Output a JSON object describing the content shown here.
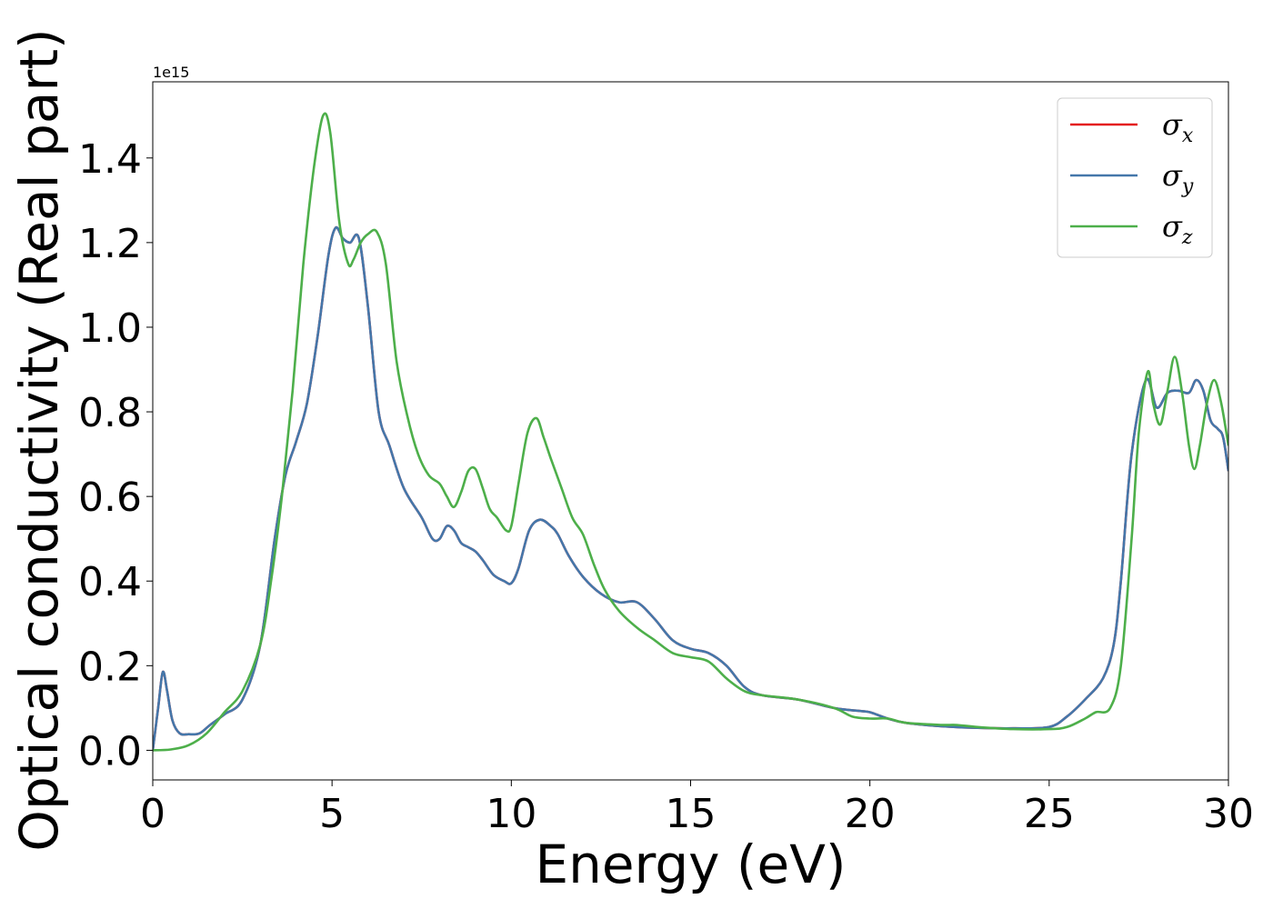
{
  "chart_data": {
    "type": "line",
    "title": "",
    "xlabel": "Energy (eV)",
    "ylabel": "Optical conductivity (Real part)",
    "y_offset_text": "1e15",
    "xlim": [
      0,
      30
    ],
    "ylim": [
      -0.07,
      1.58
    ],
    "xticks": [
      0,
      5,
      10,
      15,
      20,
      25,
      30
    ],
    "xtick_labels": [
      "0",
      "5",
      "10",
      "15",
      "20",
      "25",
      "30"
    ],
    "yticks": [
      0.0,
      0.2,
      0.4,
      0.6,
      0.8,
      1.0,
      1.2,
      1.4
    ],
    "ytick_labels": [
      "0.0",
      "0.2",
      "0.4",
      "0.6",
      "0.8",
      "1.0",
      "1.2",
      "1.4"
    ],
    "grid": false,
    "legend_position": "top-right",
    "series": [
      {
        "name": "σx",
        "symbol": "σ",
        "subscript": "x",
        "color": "#e41a1c",
        "x": [
          0,
          0.15,
          0.28,
          0.4,
          0.55,
          0.75,
          1.0,
          1.3,
          1.6,
          2.0,
          2.5,
          3.0,
          3.4,
          3.7,
          4.0,
          4.3,
          4.6,
          4.9,
          5.1,
          5.3,
          5.5,
          5.75,
          6.0,
          6.3,
          6.6,
          7.0,
          7.5,
          7.8,
          8.0,
          8.2,
          8.4,
          8.6,
          8.8,
          9.0,
          9.2,
          9.5,
          9.8,
          10.0,
          10.2,
          10.5,
          10.8,
          11.1,
          11.3,
          11.6,
          12.0,
          12.5,
          13.0,
          13.5,
          14.0,
          14.5,
          15.0,
          15.5,
          16.0,
          16.5,
          17.0,
          18.0,
          19.0,
          19.7,
          20.0,
          20.5,
          21.0,
          22.0,
          23.0,
          24.0,
          25.0,
          25.5,
          26.0,
          26.5,
          26.8,
          27.0,
          27.3,
          27.7,
          28.0,
          28.3,
          28.6,
          28.9,
          29.1,
          29.3,
          29.5,
          29.7,
          29.85,
          30.0
        ],
        "values": [
          0.0,
          0.1,
          0.185,
          0.14,
          0.07,
          0.04,
          0.038,
          0.04,
          0.06,
          0.085,
          0.12,
          0.25,
          0.5,
          0.65,
          0.73,
          0.82,
          0.98,
          1.17,
          1.235,
          1.21,
          1.2,
          1.21,
          1.05,
          0.8,
          0.72,
          0.62,
          0.55,
          0.5,
          0.5,
          0.53,
          0.52,
          0.49,
          0.48,
          0.47,
          0.45,
          0.415,
          0.4,
          0.395,
          0.43,
          0.52,
          0.545,
          0.53,
          0.51,
          0.46,
          0.41,
          0.37,
          0.35,
          0.35,
          0.31,
          0.26,
          0.24,
          0.23,
          0.2,
          0.15,
          0.13,
          0.12,
          0.1,
          0.093,
          0.09,
          0.075,
          0.065,
          0.057,
          0.053,
          0.052,
          0.055,
          0.08,
          0.12,
          0.17,
          0.25,
          0.4,
          0.7,
          0.875,
          0.81,
          0.845,
          0.85,
          0.845,
          0.875,
          0.85,
          0.78,
          0.76,
          0.74,
          0.66
        ]
      },
      {
        "name": "σy",
        "symbol": "σ",
        "subscript": "y",
        "color": "#4477aa",
        "x": [
          0,
          0.15,
          0.28,
          0.4,
          0.55,
          0.75,
          1.0,
          1.3,
          1.6,
          2.0,
          2.5,
          3.0,
          3.4,
          3.7,
          4.0,
          4.3,
          4.6,
          4.9,
          5.1,
          5.3,
          5.5,
          5.75,
          6.0,
          6.3,
          6.6,
          7.0,
          7.5,
          7.8,
          8.0,
          8.2,
          8.4,
          8.6,
          8.8,
          9.0,
          9.2,
          9.5,
          9.8,
          10.0,
          10.2,
          10.5,
          10.8,
          11.1,
          11.3,
          11.6,
          12.0,
          12.5,
          13.0,
          13.5,
          14.0,
          14.5,
          15.0,
          15.5,
          16.0,
          16.5,
          17.0,
          18.0,
          19.0,
          19.7,
          20.0,
          20.5,
          21.0,
          22.0,
          23.0,
          24.0,
          25.0,
          25.5,
          26.0,
          26.5,
          26.8,
          27.0,
          27.3,
          27.7,
          28.0,
          28.3,
          28.6,
          28.9,
          29.1,
          29.3,
          29.5,
          29.7,
          29.85,
          30.0
        ],
        "values": [
          0.0,
          0.1,
          0.185,
          0.14,
          0.07,
          0.04,
          0.038,
          0.04,
          0.06,
          0.085,
          0.12,
          0.25,
          0.5,
          0.65,
          0.73,
          0.82,
          0.98,
          1.17,
          1.235,
          1.21,
          1.2,
          1.21,
          1.05,
          0.8,
          0.72,
          0.62,
          0.55,
          0.5,
          0.5,
          0.53,
          0.52,
          0.49,
          0.48,
          0.47,
          0.45,
          0.415,
          0.4,
          0.395,
          0.43,
          0.52,
          0.545,
          0.53,
          0.51,
          0.46,
          0.41,
          0.37,
          0.35,
          0.35,
          0.31,
          0.26,
          0.24,
          0.23,
          0.2,
          0.15,
          0.13,
          0.12,
          0.1,
          0.093,
          0.09,
          0.075,
          0.065,
          0.057,
          0.053,
          0.052,
          0.055,
          0.08,
          0.12,
          0.17,
          0.25,
          0.4,
          0.7,
          0.875,
          0.81,
          0.845,
          0.85,
          0.845,
          0.875,
          0.85,
          0.78,
          0.76,
          0.74,
          0.66
        ]
      },
      {
        "name": "σz",
        "symbol": "σ",
        "subscript": "z",
        "color": "#4daf4a",
        "x": [
          0,
          0.5,
          1.0,
          1.5,
          2.0,
          2.5,
          3.0,
          3.3,
          3.6,
          3.9,
          4.2,
          4.5,
          4.75,
          4.95,
          5.2,
          5.45,
          5.6,
          5.8,
          6.0,
          6.25,
          6.5,
          6.8,
          7.1,
          7.4,
          7.7,
          8.0,
          8.2,
          8.4,
          8.6,
          8.8,
          9.0,
          9.2,
          9.4,
          9.6,
          9.85,
          10.0,
          10.2,
          10.45,
          10.7,
          10.9,
          11.1,
          11.4,
          11.7,
          12.0,
          12.3,
          12.6,
          13.0,
          13.5,
          14.0,
          14.5,
          15.0,
          15.5,
          16.0,
          16.5,
          17.0,
          18.0,
          19.0,
          19.5,
          20.0,
          20.5,
          21.0,
          22.0,
          22.4,
          23.0,
          24.0,
          25.0,
          25.5,
          26.0,
          26.3,
          26.7,
          27.0,
          27.3,
          27.5,
          27.75,
          27.9,
          28.1,
          28.3,
          28.5,
          28.7,
          28.9,
          29.05,
          29.2,
          29.4,
          29.6,
          29.8,
          30.0
        ],
        "values": [
          0.0,
          0.002,
          0.012,
          0.04,
          0.09,
          0.14,
          0.25,
          0.4,
          0.6,
          0.85,
          1.15,
          1.38,
          1.5,
          1.46,
          1.25,
          1.15,
          1.16,
          1.2,
          1.22,
          1.225,
          1.15,
          0.92,
          0.79,
          0.7,
          0.65,
          0.63,
          0.6,
          0.575,
          0.61,
          0.66,
          0.665,
          0.62,
          0.57,
          0.55,
          0.52,
          0.53,
          0.63,
          0.75,
          0.785,
          0.74,
          0.69,
          0.62,
          0.55,
          0.51,
          0.44,
          0.38,
          0.33,
          0.29,
          0.26,
          0.23,
          0.22,
          0.21,
          0.17,
          0.14,
          0.13,
          0.12,
          0.1,
          0.08,
          0.075,
          0.075,
          0.065,
          0.06,
          0.06,
          0.055,
          0.05,
          0.05,
          0.055,
          0.075,
          0.09,
          0.1,
          0.2,
          0.5,
          0.75,
          0.895,
          0.82,
          0.77,
          0.85,
          0.93,
          0.85,
          0.72,
          0.665,
          0.72,
          0.82,
          0.875,
          0.82,
          0.72
        ]
      }
    ]
  }
}
